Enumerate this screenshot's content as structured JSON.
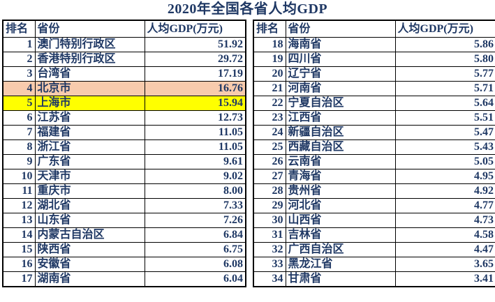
{
  "title": "2020年全国各省人均GDP",
  "colors": {
    "text": "#1F3864",
    "border": "#000000",
    "background": "#FFFFFF",
    "highlight_beijing": "#F8CBAD",
    "highlight_shanghai": "#FFFF00"
  },
  "table": {
    "headers": {
      "rank": "排名",
      "province": "省份",
      "gdp": "人均GDP(万元)"
    },
    "left_rows": [
      {
        "rank": "1",
        "province": "澳门特别行政区",
        "value": "51.92",
        "highlight": null
      },
      {
        "rank": "2",
        "province": "香港特别行政区",
        "value": "29.72",
        "highlight": null
      },
      {
        "rank": "3",
        "province": "台湾省",
        "value": "17.19",
        "highlight": null
      },
      {
        "rank": "4",
        "province": "北京市",
        "value": "16.76",
        "highlight": "#F8CBAD"
      },
      {
        "rank": "5",
        "province": "上海市",
        "value": "15.94",
        "highlight": "#FFFF00"
      },
      {
        "rank": "6",
        "province": "江苏省",
        "value": "12.73",
        "highlight": null
      },
      {
        "rank": "7",
        "province": "福建省",
        "value": "11.05",
        "highlight": null
      },
      {
        "rank": "8",
        "province": "浙江省",
        "value": "11.05",
        "highlight": null
      },
      {
        "rank": "9",
        "province": "广东省",
        "value": "9.61",
        "highlight": null
      },
      {
        "rank": "10",
        "province": "天津市",
        "value": "9.02",
        "highlight": null
      },
      {
        "rank": "11",
        "province": "重庆市",
        "value": "8.00",
        "highlight": null
      },
      {
        "rank": "12",
        "province": "湖北省",
        "value": "7.33",
        "highlight": null
      },
      {
        "rank": "13",
        "province": "山东省",
        "value": "7.26",
        "highlight": null
      },
      {
        "rank": "14",
        "province": "内蒙古自治区",
        "value": "6.84",
        "highlight": null
      },
      {
        "rank": "15",
        "province": "陕西省",
        "value": "6.75",
        "highlight": null
      },
      {
        "rank": "16",
        "province": "安徽省",
        "value": "6.08",
        "highlight": null
      },
      {
        "rank": "17",
        "province": "湖南省",
        "value": "6.04",
        "highlight": null
      }
    ],
    "right_rows": [
      {
        "rank": "18",
        "province": "海南省",
        "value": "5.86",
        "highlight": null
      },
      {
        "rank": "19",
        "province": "四川省",
        "value": "5.80",
        "highlight": null
      },
      {
        "rank": "20",
        "province": "辽宁省",
        "value": "5.77",
        "highlight": null
      },
      {
        "rank": "21",
        "province": "河南省",
        "value": "5.71",
        "highlight": null
      },
      {
        "rank": "22",
        "province": "宁夏自治区",
        "value": "5.64",
        "highlight": null
      },
      {
        "rank": "23",
        "province": "江西省",
        "value": "5.51",
        "highlight": null
      },
      {
        "rank": "24",
        "province": "新疆自治区",
        "value": "5.47",
        "highlight": null
      },
      {
        "rank": "25",
        "province": "西藏自治区",
        "value": "5.43",
        "highlight": null
      },
      {
        "rank": "26",
        "province": "云南省",
        "value": "5.05",
        "highlight": null
      },
      {
        "rank": "27",
        "province": "青海省",
        "value": "4.95",
        "highlight": null
      },
      {
        "rank": "28",
        "province": "贵州省",
        "value": "4.92",
        "highlight": null
      },
      {
        "rank": "29",
        "province": "河北省",
        "value": "4.77",
        "highlight": null
      },
      {
        "rank": "30",
        "province": "山西省",
        "value": "4.73",
        "highlight": null
      },
      {
        "rank": "31",
        "province": "吉林省",
        "value": "4.58",
        "highlight": null
      },
      {
        "rank": "32",
        "province": "广西自治区",
        "value": "4.47",
        "highlight": null
      },
      {
        "rank": "33",
        "province": "黑龙江省",
        "value": "3.65",
        "highlight": null
      },
      {
        "rank": "34",
        "province": "甘肃省",
        "value": "3.41",
        "highlight": null
      }
    ]
  },
  "chart_data": {
    "type": "table",
    "title": "2020年全国各省人均GDP",
    "columns": [
      "排名",
      "省份",
      "人均GDP(万元)"
    ],
    "rows": [
      [
        1,
        "澳门特别行政区",
        51.92
      ],
      [
        2,
        "香港特别行政区",
        29.72
      ],
      [
        3,
        "台湾省",
        17.19
      ],
      [
        4,
        "北京市",
        16.76
      ],
      [
        5,
        "上海市",
        15.94
      ],
      [
        6,
        "江苏省",
        12.73
      ],
      [
        7,
        "福建省",
        11.05
      ],
      [
        8,
        "浙江省",
        11.05
      ],
      [
        9,
        "广东省",
        9.61
      ],
      [
        10,
        "天津市",
        9.02
      ],
      [
        11,
        "重庆市",
        8.0
      ],
      [
        12,
        "湖北省",
        7.33
      ],
      [
        13,
        "山东省",
        7.26
      ],
      [
        14,
        "内蒙古自治区",
        6.84
      ],
      [
        15,
        "陕西省",
        6.75
      ],
      [
        16,
        "安徽省",
        6.08
      ],
      [
        17,
        "湖南省",
        6.04
      ],
      [
        18,
        "海南省",
        5.86
      ],
      [
        19,
        "四川省",
        5.8
      ],
      [
        20,
        "辽宁省",
        5.77
      ],
      [
        21,
        "河南省",
        5.71
      ],
      [
        22,
        "宁夏自治区",
        5.64
      ],
      [
        23,
        "江西省",
        5.51
      ],
      [
        24,
        "新疆自治区",
        5.47
      ],
      [
        25,
        "西藏自治区",
        5.43
      ],
      [
        26,
        "云南省",
        5.05
      ],
      [
        27,
        "青海省",
        4.95
      ],
      [
        28,
        "贵州省",
        4.92
      ],
      [
        29,
        "河北省",
        4.77
      ],
      [
        30,
        "山西省",
        4.73
      ],
      [
        31,
        "吉林省",
        4.58
      ],
      [
        32,
        "广西自治区",
        4.47
      ],
      [
        33,
        "黑龙江省",
        3.65
      ],
      [
        34,
        "甘肃省",
        3.41
      ]
    ],
    "highlighted_rows": [
      {
        "rank": 4,
        "province": "北京市",
        "color": "#F8CBAD"
      },
      {
        "rank": 5,
        "province": "上海市",
        "color": "#FFFF00"
      }
    ],
    "layout": "two side-by-side panels: ranks 1-17 left, ranks 18-34 right"
  }
}
